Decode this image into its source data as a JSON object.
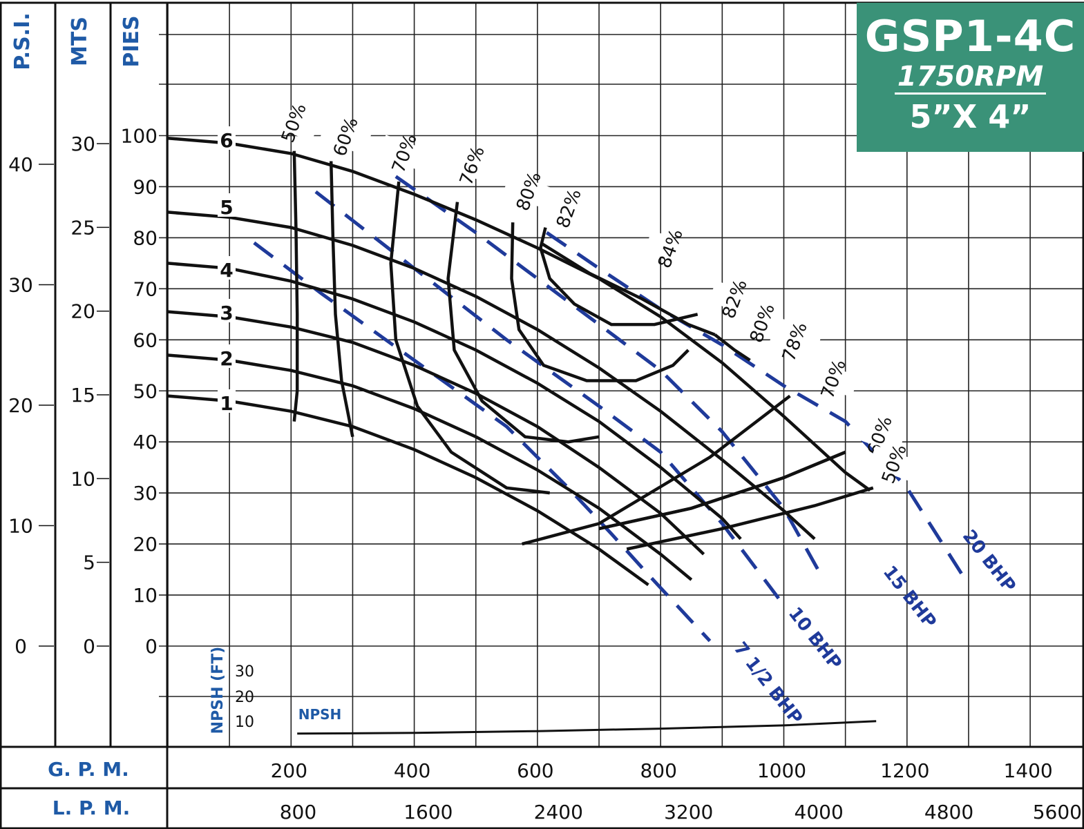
{
  "title": {
    "model": "GSP1-4C",
    "rpm": "1750RPM",
    "size": "5”X 4”",
    "background_color": "#3a9278"
  },
  "axes": {
    "left_titles": [
      "P.S.I.",
      "MTS",
      "PIES"
    ],
    "psi_ticks": [
      "40",
      "30",
      "20",
      "10",
      "0"
    ],
    "mts_ticks": [
      "30",
      "25",
      "20",
      "15",
      "10",
      "5",
      "0"
    ],
    "pies_ticks": [
      "100",
      "90",
      "80",
      "70",
      "60",
      "50",
      "40",
      "30",
      "20",
      "10",
      "0"
    ],
    "gpm_title": "G. P. M.",
    "gpm_ticks": [
      "200",
      "400",
      "600",
      "800",
      "1000",
      "1200",
      "1400"
    ],
    "lpm_title": "L. P. M.",
    "lpm_ticks": [
      "800",
      "1600",
      "2400",
      "3200",
      "4000",
      "4800",
      "5600"
    ],
    "npsh_title": "NPSH (FT)",
    "npsh_ticks": [
      "30",
      "20",
      "10"
    ]
  },
  "chart_data": {
    "type": "line",
    "x_unit": "GPM",
    "y_unit": "ft",
    "xlim": [
      0,
      1450
    ],
    "ylim": [
      0,
      100
    ],
    "grid": true,
    "head_curves": [
      {
        "name": "6",
        "x": [
          0,
          100,
          200,
          300,
          400,
          500,
          600,
          700,
          800,
          900,
          1000,
          1100,
          1140
        ],
        "y": [
          99.5,
          98.5,
          96.5,
          93,
          88.5,
          83.5,
          78,
          72,
          64.5,
          55.5,
          45,
          34,
          30.5
        ]
      },
      {
        "name": "5",
        "x": [
          0,
          100,
          200,
          300,
          400,
          500,
          600,
          700,
          800,
          900,
          1000,
          1050
        ],
        "y": [
          85,
          84,
          82,
          78.5,
          74,
          68.5,
          62,
          54.5,
          46,
          36.5,
          26.5,
          21
        ]
      },
      {
        "name": "4",
        "x": [
          0,
          100,
          200,
          300,
          400,
          500,
          600,
          700,
          800,
          900,
          930
        ],
        "y": [
          75,
          74,
          71.5,
          68,
          63.5,
          58,
          51.5,
          44,
          35,
          25,
          21
        ]
      },
      {
        "name": "3",
        "x": [
          0,
          100,
          200,
          300,
          400,
          500,
          600,
          700,
          800,
          870
        ],
        "y": [
          65.5,
          64.5,
          62.5,
          59.5,
          55,
          49.5,
          43,
          35,
          26,
          18
        ]
      },
      {
        "name": "2",
        "x": [
          0,
          100,
          200,
          300,
          400,
          500,
          600,
          700,
          800,
          850
        ],
        "y": [
          57,
          56,
          54,
          51,
          46.5,
          41,
          34.5,
          27,
          18,
          13
        ]
      },
      {
        "name": "1",
        "x": [
          0,
          100,
          200,
          300,
          400,
          500,
          600,
          700,
          780
        ],
        "y": [
          49,
          48,
          46,
          43,
          38.5,
          33,
          26.5,
          19,
          12
        ]
      }
    ],
    "efficiency_curves": [
      {
        "name": "50%",
        "x": [
          205,
          208,
          210,
          210,
          205
        ],
        "y": [
          97,
          82,
          65,
          50,
          44
        ]
      },
      {
        "name": "60%",
        "x": [
          265,
          268,
          272,
          282,
          300
        ],
        "y": [
          95,
          80,
          65,
          52,
          41
        ]
      },
      {
        "name": "70%",
        "x": [
          375,
          362,
          370,
          405,
          460,
          550,
          620
        ],
        "y": [
          91,
          75,
          60,
          47,
          38,
          31,
          30
        ]
      },
      {
        "name": "76%",
        "x": [
          470,
          455,
          465,
          510,
          580,
          650,
          700
        ],
        "y": [
          87,
          72,
          58,
          48,
          41,
          40,
          41
        ]
      },
      {
        "name": "80%",
        "x": [
          560,
          558,
          570,
          610,
          680,
          760,
          820,
          845
        ],
        "y": [
          83,
          72,
          62,
          55,
          52,
          52,
          55,
          58
        ]
      },
      {
        "name": "82%",
        "x": [
          613,
          605,
          620,
          660,
          720,
          790,
          860
        ],
        "y": [
          82,
          78,
          72,
          67,
          63,
          63,
          65
        ]
      },
      {
        "name": "82%",
        "x": [
          605,
          685,
          770,
          845,
          888
        ],
        "y": [
          79,
          73,
          68,
          63,
          61
        ]
      },
      {
        "name": "80%",
        "x": [
          888,
          920,
          945
        ],
        "y": [
          61,
          58,
          56
        ]
      },
      {
        "name": "78%",
        "x": [
          575,
          700,
          880,
          1010
        ],
        "y": [
          20,
          24,
          37,
          49
        ]
      },
      {
        "name": "70%",
        "x": [
          700,
          850,
          1000,
          1100
        ],
        "y": [
          23,
          27,
          33,
          38
        ]
      },
      {
        "name": "60%",
        "x": [
          700,
          850,
          1000,
          1100
        ],
        "y": [
          23,
          27,
          33,
          38
        ]
      },
      {
        "name": "50%",
        "x": [
          745,
          900,
          1050,
          1145
        ],
        "y": [
          19,
          23,
          27.5,
          31
        ]
      }
    ],
    "bhp_lines": [
      {
        "name": "7 1/2 BHP",
        "x": [
          140,
          250,
          400,
          550,
          650,
          720,
          780,
          880
        ],
        "y": [
          79,
          69,
          56,
          43,
          31,
          22,
          14,
          1
        ]
      },
      {
        "name": "10 BHP",
        "x": [
          240,
          400,
          550,
          700,
          800,
          900,
          1000
        ],
        "y": [
          89,
          74,
          60,
          47,
          38,
          24,
          8
        ]
      },
      {
        "name": "15 BHP",
        "x": [
          370,
          500,
          600,
          700,
          800,
          900,
          1000,
          1060
        ],
        "y": [
          92,
          81,
          72,
          63,
          54,
          42,
          27,
          14
        ]
      },
      {
        "name": "20 BHP",
        "x": [
          615,
          700,
          800,
          900,
          1000,
          1100,
          1200,
          1300
        ],
        "y": [
          81,
          74,
          66,
          59,
          51,
          44,
          31,
          12
        ]
      }
    ],
    "npsh_curve": {
      "name": "NPSH",
      "x": [
        210,
        400,
        600,
        800,
        1000,
        1150
      ],
      "y": [
        5,
        5.3,
        6,
        7,
        8.3,
        10
      ]
    }
  },
  "labels": {
    "head_curve_labels": [
      "6",
      "5",
      "4",
      "3",
      "2",
      "1"
    ],
    "efficiency_labels": [
      "50%",
      "60%",
      "70%",
      "76%",
      "80%",
      "82%",
      "84%",
      "82%",
      "80%",
      "78%",
      "70%",
      "60%",
      "50%"
    ],
    "bhp_labels": [
      "20 BHP",
      "15 BHP",
      "10 BHP",
      "7 1/2 BHP"
    ],
    "npsh_label": "NPSH"
  }
}
